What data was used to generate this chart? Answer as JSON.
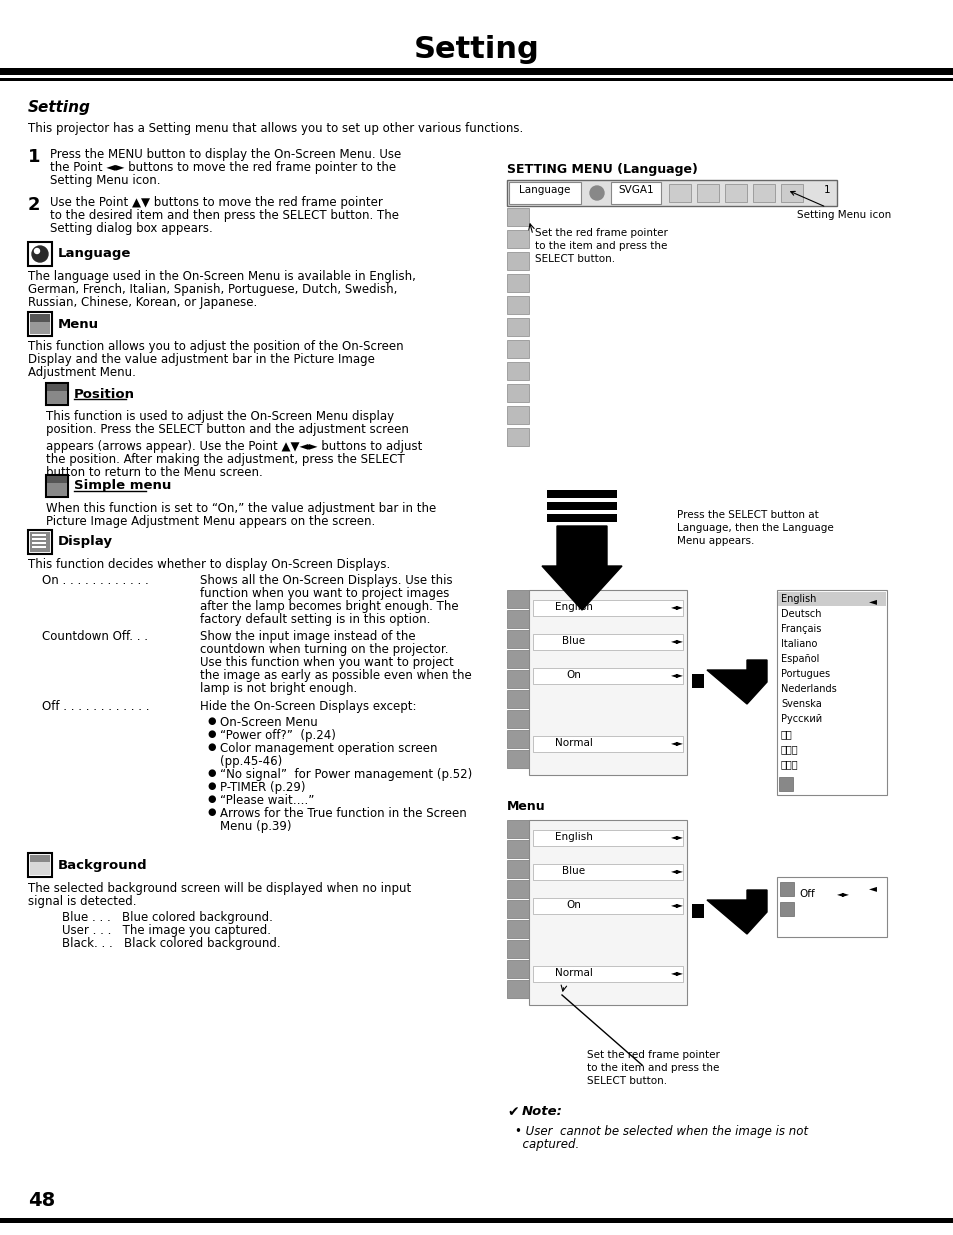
{
  "title": "Setting",
  "subtitle": "Setting",
  "bg_color": "#ffffff",
  "text_color": "#000000",
  "page_number": "48",
  "content": {
    "intro": "This projector has a Setting menu that allows you to set up other various functions.",
    "step1": "Press the MENU button to display the On-Screen Menu. Use\nthe Point ◄► buttons to move the red frame pointer to the\nSetting Menu icon.",
    "step2": "Use the Point ▲▼ buttons to move the red frame pointer\nto the desired item and then press the SELECT button. The\nSetting dialog box appears.",
    "language_header": "Language",
    "language_text": "The language used in the On-Screen Menu is available in English,\nGerman, French, Italian, Spanish, Portuguese, Dutch, Swedish,\nRussian, Chinese, Korean, or Japanese.",
    "menu_header": "Menu",
    "menu_text": "This function allows you to adjust the position of the On-Screen\nDisplay and the value adjustment bar in the Picture Image\nAdjustment Menu.",
    "position_header": "Position",
    "position_text1": "This function is used to adjust the On-Screen Menu display\nposition. Press the SELECT button and the adjustment screen",
    "position_text2": "appears (arrows appear). Use the Point ▲▼◄► buttons to adjust\nthe position. After making the adjustment, press the SELECT\nbutton to return to the Menu screen.",
    "simplemenu_header": "Simple menu",
    "simplemenu_text": "When this function is set to “On,” the value adjustment bar in the\nPicture Image Adjustment Menu appears on the screen.",
    "display_header": "Display",
    "display_text": "This function decides whether to display On-Screen Displays.",
    "on_label": "On . . . . . . . . . . . .",
    "on_text1": "Shows all the On-Screen Displays. Use this",
    "on_text2": "function when you want to project images",
    "on_text3": "after the lamp becomes bright enough. The",
    "on_text4": "factory default setting is in this option.",
    "countdown_label": "Countdown Off. . .",
    "countdown_text1": "Show the input image instead of the",
    "countdown_text2": "countdown when turning on the projector.",
    "countdown_text3": "Use this function when you want to project",
    "countdown_text4": "the image as early as possible even when the",
    "countdown_text5": "lamp is not bright enough.",
    "off_label": "Off . . . . . . . . . . . .",
    "off_text": "Hide the On-Screen Displays except:",
    "bullet1": "On-Screen Menu",
    "bullet2": "“Power off?”  (p.24)",
    "bullet3": "Color management operation screen",
    "bullet3b": "(pp.45-46)",
    "bullet4": "“No signal”  for Power management (p.52)",
    "bullet5": "P-TIMER (p.29)",
    "bullet6": "“Please wait….”",
    "bullet7": "Arrows for the True function in the Screen",
    "bullet7b": "Menu (p.39)",
    "background_header": "Background",
    "background_text1": "The selected background screen will be displayed when no input",
    "background_text2": "signal is detected.",
    "bg_blue": "Blue . . .   Blue colored background.",
    "bg_user": "User . . .   The image you captured.",
    "bg_black": "Black. . .   Black colored background.",
    "right_title": "SETTING MENU (Language)",
    "setting_menu_note": "Setting Menu icon",
    "red_frame_note1": "Set the red frame pointer",
    "red_frame_note2": "to the item and press the",
    "red_frame_note3": "SELECT button.",
    "select_note1": "Press the SELECT button at",
    "select_note2": "Language, then the Language",
    "select_note3": "Menu appears.",
    "menu_label": "Menu",
    "set_red_note1": "Set the red frame pointer",
    "set_red_note2": "to the item and press the",
    "set_red_note3": "SELECT button.",
    "note_title": "Note:",
    "note_text1": "• User  cannot be selected when the image is not",
    "note_text2": "  captured.",
    "languages": [
      "English",
      "Deutsch",
      "Français",
      "Italiano",
      "Español",
      "Portugues",
      "Nederlands",
      "Svenska",
      "Русский",
      "中文",
      "한국어",
      "日本語"
    ]
  }
}
